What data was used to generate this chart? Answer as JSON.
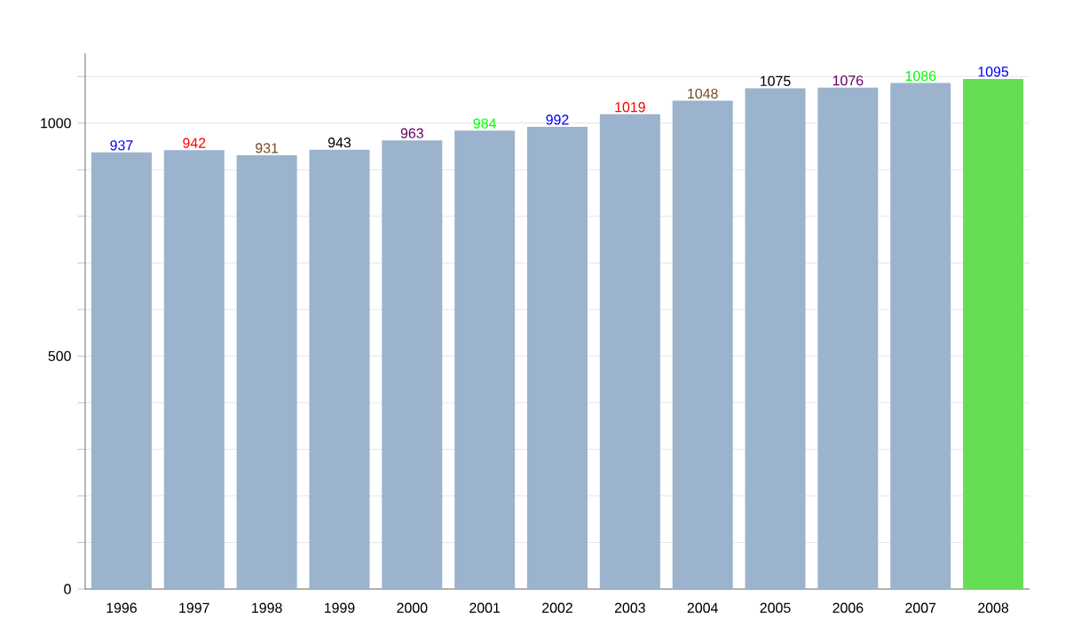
{
  "chart_data": {
    "type": "bar",
    "categories": [
      "1996",
      "1997",
      "1998",
      "1999",
      "2000",
      "2001",
      "2002",
      "2003",
      "2004",
      "2005",
      "2006",
      "2007",
      "2008"
    ],
    "values": [
      937,
      942,
      931,
      943,
      963,
      984,
      992,
      1019,
      1048,
      1075,
      1076,
      1086,
      1095
    ],
    "colors": [
      "#9bb3cc",
      "#9bb3cc",
      "#9bb3cc",
      "#9bb3cc",
      "#9bb3cc",
      "#9bb3cc",
      "#9bb3cc",
      "#9bb3cc",
      "#9bb3cc",
      "#9bb3cc",
      "#9bb3cc",
      "#9bb3cc",
      "#66dd55"
    ],
    "ylim": [
      0,
      1150
    ],
    "yticks": [
      0,
      {
        "value": 100,
        "label": null
      },
      {
        "value": 200,
        "label": null
      },
      {
        "value": 300,
        "label": null
      },
      {
        "value": 400,
        "label": null
      },
      500,
      {
        "value": 600,
        "label": null
      },
      {
        "value": 700,
        "label": null
      },
      {
        "value": 800,
        "label": null
      },
      {
        "value": 900,
        "label": null
      },
      1000,
      {
        "value": 1100,
        "label": null
      }
    ],
    "grid": "y",
    "data_labels": true
  }
}
